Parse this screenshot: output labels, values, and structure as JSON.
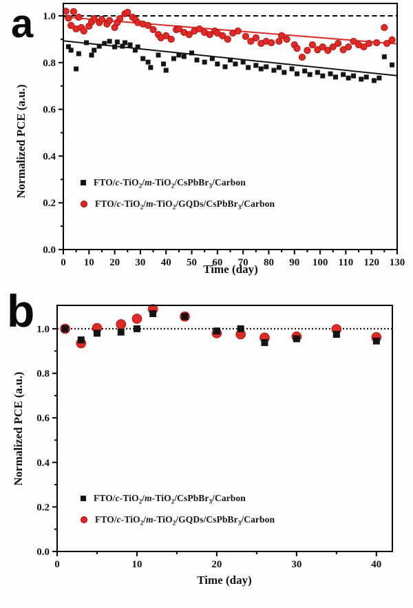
{
  "figure": {
    "background": "#ffffff",
    "colors": {
      "series_black": "#141414",
      "series_red": "#dd2b27",
      "axis": "#000000"
    }
  },
  "chart_data": [
    {
      "type": "scatter",
      "panel_label": "a",
      "xlabel": "Time (day)",
      "ylabel": "Normalized PCE (a.u.)",
      "xlim": [
        0,
        130
      ],
      "ylim": [
        0,
        1.053
      ],
      "xticks": [
        0,
        10,
        20,
        30,
        40,
        50,
        60,
        70,
        80,
        90,
        100,
        110,
        120,
        130
      ],
      "yticks": [
        0.0,
        0.2,
        0.4,
        0.6,
        0.8,
        1.0
      ],
      "x_minor_step": 5,
      "y_minor_step": 0.1,
      "grid": false,
      "legend_position": "lower-left-inside",
      "reference_line": {
        "y": 1.0,
        "style": "dashed",
        "color": "#000000"
      },
      "series": [
        {
          "name": "FTO/c-TiO2/m-TiO2/CsPbBr3/Carbon",
          "marker": "square",
          "color": "#141414",
          "trend_line": {
            "x": [
              0,
              130
            ],
            "y": [
              0.893,
              0.744
            ]
          },
          "label_segments": [
            {
              "text": "FTO/",
              "style": "n"
            },
            {
              "text": "c",
              "style": "i"
            },
            {
              "text": "-TiO",
              "style": "n"
            },
            {
              "text": "2",
              "style": "s"
            },
            {
              "text": "/",
              "style": "n"
            },
            {
              "text": "m",
              "style": "i"
            },
            {
              "text": "-TiO",
              "style": "n"
            },
            {
              "text": "2",
              "style": "s"
            },
            {
              "text": "/CsPbBr",
              "style": "n"
            },
            {
              "text": "3",
              "style": "s"
            },
            {
              "text": "/Carbon",
              "style": "n"
            }
          ],
          "points": [
            [
              2,
              0.868
            ],
            [
              3,
              0.853
            ],
            [
              5,
              0.773
            ],
            [
              6,
              0.838
            ],
            [
              9,
              0.885
            ],
            [
              11,
              0.832
            ],
            [
              12,
              0.853
            ],
            [
              14,
              0.87
            ],
            [
              16,
              0.882
            ],
            [
              18,
              0.891
            ],
            [
              20,
              0.867
            ],
            [
              21,
              0.888
            ],
            [
              23,
              0.87
            ],
            [
              24,
              0.885
            ],
            [
              26,
              0.876
            ],
            [
              28,
              0.853
            ],
            [
              29,
              0.867
            ],
            [
              31,
              0.817
            ],
            [
              33,
              0.802
            ],
            [
              34,
              0.779
            ],
            [
              37,
              0.832
            ],
            [
              39,
              0.794
            ],
            [
              40,
              0.767
            ],
            [
              43,
              0.817
            ],
            [
              45,
              0.832
            ],
            [
              47,
              0.826
            ],
            [
              50,
              0.841
            ],
            [
              52,
              0.811
            ],
            [
              55,
              0.802
            ],
            [
              58,
              0.817
            ],
            [
              60,
              0.794
            ],
            [
              63,
              0.782
            ],
            [
              65,
              0.811
            ],
            [
              67,
              0.794
            ],
            [
              70,
              0.802
            ],
            [
              72,
              0.779
            ],
            [
              75,
              0.788
            ],
            [
              77,
              0.773
            ],
            [
              79,
              0.782
            ],
            [
              82,
              0.767
            ],
            [
              84,
              0.779
            ],
            [
              86,
              0.758
            ],
            [
              89,
              0.773
            ],
            [
              91,
              0.752
            ],
            [
              94,
              0.764
            ],
            [
              96,
              0.749
            ],
            [
              99,
              0.758
            ],
            [
              101,
              0.743
            ],
            [
              104,
              0.752
            ],
            [
              106,
              0.738
            ],
            [
              109,
              0.749
            ],
            [
              111,
              0.734
            ],
            [
              113,
              0.743
            ],
            [
              116,
              0.729
            ],
            [
              118,
              0.738
            ],
            [
              121,
              0.723
            ],
            [
              123,
              0.734
            ],
            [
              125,
              0.825
            ],
            [
              128,
              0.79
            ]
          ]
        },
        {
          "name": "FTO/c-TiO2/m-TiO2/GQDs/CsPbBr3/Carbon",
          "marker": "circle",
          "color": "#dd2b27",
          "trend_line": {
            "x": [
              0,
              130
            ],
            "y": [
              0.995,
              0.88
            ]
          },
          "label_segments": [
            {
              "text": "FTO/",
              "style": "n"
            },
            {
              "text": "c",
              "style": "i"
            },
            {
              "text": "-TiO",
              "style": "n"
            },
            {
              "text": "2",
              "style": "s"
            },
            {
              "text": "/",
              "style": "n"
            },
            {
              "text": "m",
              "style": "i"
            },
            {
              "text": "-TiO",
              "style": "n"
            },
            {
              "text": "2",
              "style": "s"
            },
            {
              "text": "/GQDs/CsPbBr",
              "style": "n"
            },
            {
              "text": "3",
              "style": "s"
            },
            {
              "text": "/Carbon",
              "style": "n"
            }
          ],
          "points": [
            [
              1,
              1.02
            ],
            [
              2,
              0.99
            ],
            [
              3,
              0.959
            ],
            [
              4,
              1.018
            ],
            [
              5,
              0.944
            ],
            [
              6,
              0.994
            ],
            [
              7,
              0.95
            ],
            [
              8,
              0.935
            ],
            [
              10,
              0.956
            ],
            [
              11,
              0.974
            ],
            [
              12,
              0.988
            ],
            [
              14,
              0.971
            ],
            [
              15,
              0.985
            ],
            [
              17,
              0.965
            ],
            [
              18,
              0.98
            ],
            [
              20,
              0.95
            ],
            [
              21,
              0.971
            ],
            [
              22,
              0.988
            ],
            [
              24,
              1.009
            ],
            [
              25,
              1.015
            ],
            [
              27,
              0.994
            ],
            [
              28,
              0.985
            ],
            [
              29,
              0.971
            ],
            [
              31,
              0.965
            ],
            [
              33,
              0.959
            ],
            [
              35,
              0.941
            ],
            [
              37,
              0.92
            ],
            [
              38,
              0.906
            ],
            [
              40,
              0.915
            ],
            [
              42,
              0.9
            ],
            [
              44,
              0.941
            ],
            [
              45,
              0.944
            ],
            [
              47,
              0.929
            ],
            [
              49,
              0.92
            ],
            [
              51,
              0.935
            ],
            [
              53,
              0.944
            ],
            [
              55,
              0.929
            ],
            [
              57,
              0.92
            ],
            [
              59,
              0.935
            ],
            [
              60,
              0.926
            ],
            [
              62,
              0.915
            ],
            [
              64,
              0.9
            ],
            [
              66,
              0.926
            ],
            [
              68,
              0.935
            ],
            [
              71,
              0.912
            ],
            [
              73,
              0.891
            ],
            [
              75,
              0.906
            ],
            [
              77,
              0.882
            ],
            [
              79,
              0.891
            ],
            [
              81,
              0.885
            ],
            [
              84,
              0.891
            ],
            [
              85,
              0.915
            ],
            [
              87,
              0.9
            ],
            [
              90,
              0.876
            ],
            [
              91,
              0.861
            ],
            [
              93,
              0.823
            ],
            [
              95,
              0.852
            ],
            [
              97,
              0.876
            ],
            [
              99,
              0.855
            ],
            [
              101,
              0.867
            ],
            [
              103,
              0.852
            ],
            [
              105,
              0.867
            ],
            [
              107,
              0.882
            ],
            [
              109,
              0.855
            ],
            [
              111,
              0.867
            ],
            [
              113,
              0.891
            ],
            [
              115,
              0.876
            ],
            [
              117,
              0.867
            ],
            [
              119,
              0.882
            ],
            [
              122,
              0.885
            ],
            [
              125,
              0.95
            ],
            [
              126,
              0.882
            ],
            [
              128,
              0.897
            ]
          ]
        }
      ]
    },
    {
      "type": "scatter",
      "panel_label": "b",
      "xlabel": "Time (day)",
      "ylabel": "Normalized PCE (a.u.)",
      "xlim": [
        0,
        42
      ],
      "ylim": [
        0,
        1.105
      ],
      "xticks": [
        0,
        10,
        20,
        30,
        40
      ],
      "yticks": [
        0.0,
        0.2,
        0.4,
        0.6,
        0.8,
        1.0
      ],
      "x_minor_step": 5,
      "y_minor_step": 0.1,
      "grid": false,
      "legend_position": "lower-left-inside",
      "reference_line": {
        "y": 1.0,
        "style": "dotted",
        "color": "#000000"
      },
      "series": [
        {
          "name": "FTO/c-TiO2/m-TiO2/CsPbBr3/Carbon",
          "marker": "square",
          "color": "#141414",
          "trend_line": null,
          "label_segments": [
            {
              "text": "FTO/",
              "style": "n"
            },
            {
              "text": "c",
              "style": "i"
            },
            {
              "text": "-TiO",
              "style": "n"
            },
            {
              "text": "2",
              "style": "s"
            },
            {
              "text": "/",
              "style": "n"
            },
            {
              "text": "m",
              "style": "i"
            },
            {
              "text": "-TiO",
              "style": "n"
            },
            {
              "text": "2",
              "style": "s"
            },
            {
              "text": "/CsPbBr",
              "style": "n"
            },
            {
              "text": "3",
              "style": "s"
            },
            {
              "text": "/Carbon",
              "style": "n"
            }
          ],
          "points": [
            [
              1,
              1.0
            ],
            [
              3,
              0.95
            ],
            [
              5,
              0.98
            ],
            [
              8,
              0.985
            ],
            [
              10,
              1.0
            ],
            [
              12,
              1.068
            ],
            [
              16,
              1.055
            ],
            [
              20,
              0.99
            ],
            [
              23,
              1.0
            ],
            [
              26,
              0.938
            ],
            [
              30,
              0.955
            ],
            [
              35,
              0.975
            ],
            [
              40,
              0.945
            ]
          ]
        },
        {
          "name": "FTO/c-TiO2/m-TiO2/GQDs/CsPbBr3/Carbon",
          "marker": "circle",
          "color": "#dd2b27",
          "trend_line": null,
          "label_segments": [
            {
              "text": "FTO/",
              "style": "n"
            },
            {
              "text": "c",
              "style": "i"
            },
            {
              "text": "-TiO",
              "style": "n"
            },
            {
              "text": "2",
              "style": "s"
            },
            {
              "text": "/",
              "style": "n"
            },
            {
              "text": "m",
              "style": "i"
            },
            {
              "text": "-TiO",
              "style": "n"
            },
            {
              "text": "2",
              "style": "s"
            },
            {
              "text": "/GQDs/CsPbBr",
              "style": "n"
            },
            {
              "text": "3",
              "style": "s"
            },
            {
              "text": "/Carbon",
              "style": "n"
            }
          ],
          "points": [
            [
              1,
              1.0
            ],
            [
              3,
              0.935
            ],
            [
              5,
              1.003
            ],
            [
              8,
              1.02
            ],
            [
              10,
              1.045
            ],
            [
              12,
              1.088
            ],
            [
              16,
              1.055
            ],
            [
              20,
              0.98
            ],
            [
              23,
              0.975
            ],
            [
              26,
              0.96
            ],
            [
              30,
              0.965
            ],
            [
              35,
              0.998
            ],
            [
              40,
              0.962
            ]
          ]
        }
      ]
    }
  ]
}
